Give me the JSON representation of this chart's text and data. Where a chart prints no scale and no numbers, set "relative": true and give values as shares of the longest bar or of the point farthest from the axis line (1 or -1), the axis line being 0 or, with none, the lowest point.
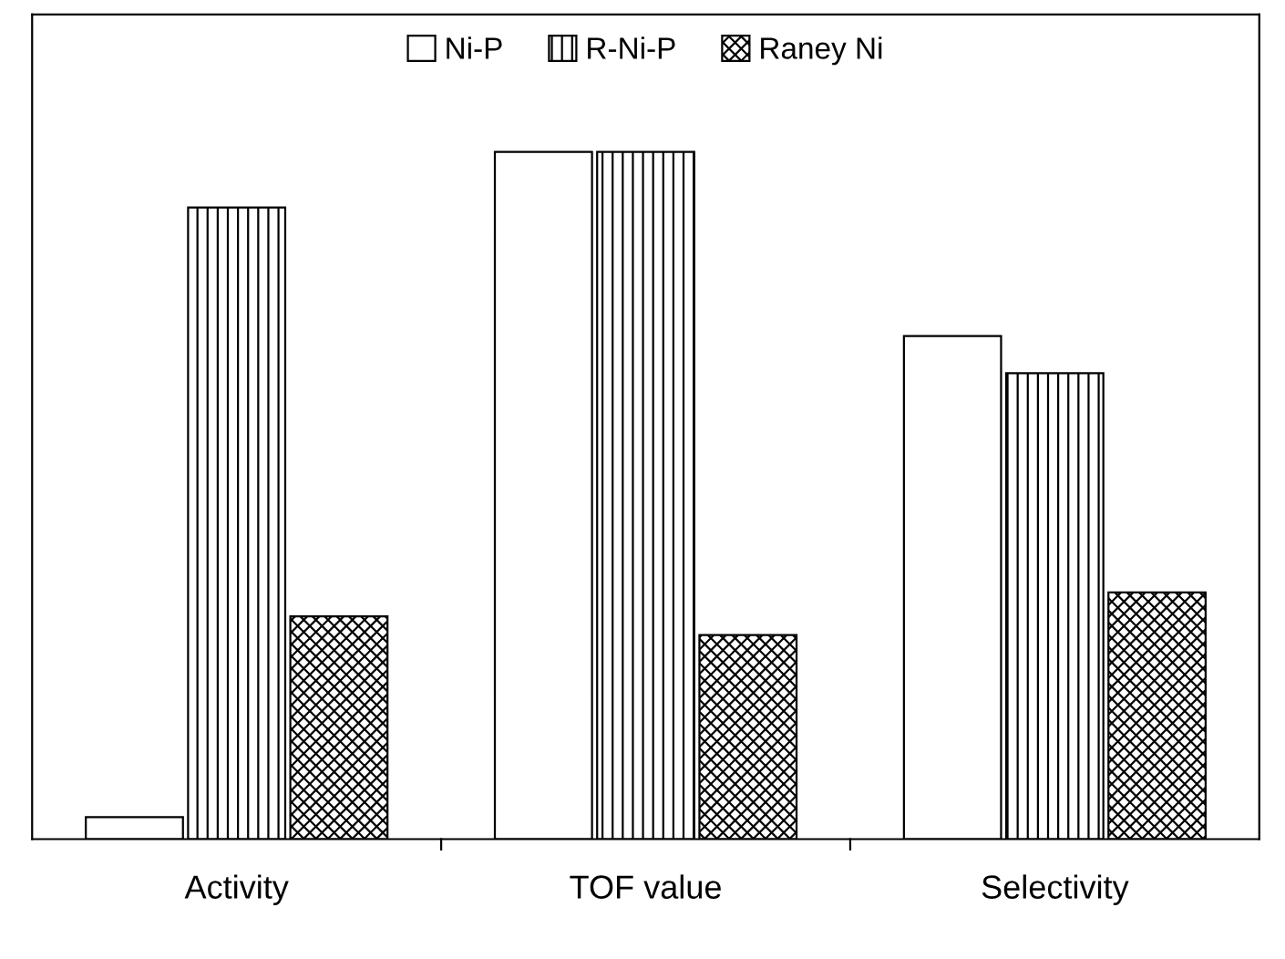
{
  "chart_data": {
    "type": "bar",
    "relative": true,
    "categories": [
      "Activity",
      "TOF value",
      "Selectivity"
    ],
    "series": [
      {
        "name": "Ni-P",
        "color": "#ffffff",
        "values": [
          0.032,
          1,
          0.732
        ]
      },
      {
        "name": "R-Ni-P",
        "color": "#000000",
        "values": [
          0.919,
          1,
          0.678
        ]
      },
      {
        "name": "Raney Ni",
        "color": "#000000",
        "values": [
          0.324,
          0.297,
          0.359
        ]
      }
    ],
    "legend": "top",
    "grid": false
  }
}
